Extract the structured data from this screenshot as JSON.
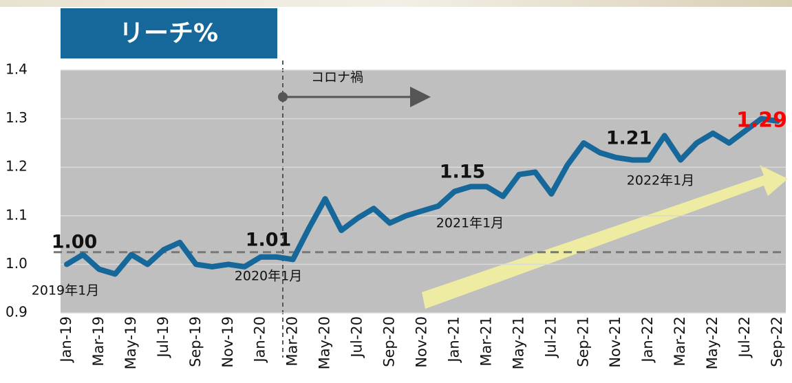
{
  "chart_data": {
    "type": "line",
    "title": "リーチ%",
    "categories": [
      "Jan-19",
      null,
      "Mar-19",
      null,
      "May-19",
      null,
      "Jul-19",
      null,
      "Sep-19",
      null,
      "Nov-19",
      null,
      "Jan-20",
      null,
      "Mar-20",
      null,
      "May-20",
      null,
      "Jul-20",
      null,
      "Sep-20",
      null,
      "Nov-20",
      null,
      "Jan-21",
      null,
      "Mar-21",
      null,
      "May-21",
      null,
      "Jul-21",
      null,
      "Sep-21",
      null,
      "Nov-21",
      null,
      "Jan-22",
      null,
      "Mar-22",
      null,
      "May-22",
      null,
      "Jul-22",
      null,
      "Sep-22"
    ],
    "values": [
      1.0,
      1.02,
      0.99,
      0.98,
      1.02,
      1.0,
      1.03,
      1.045,
      1.0,
      0.995,
      1.0,
      0.995,
      1.015,
      1.015,
      1.01,
      1.075,
      1.135,
      1.07,
      1.095,
      1.115,
      1.085,
      1.1,
      1.11,
      1.12,
      1.15,
      1.16,
      1.16,
      1.14,
      1.185,
      1.19,
      1.145,
      1.205,
      1.25,
      1.23,
      1.22,
      1.215,
      1.215,
      1.265,
      1.215,
      1.25,
      1.27,
      1.25,
      1.275,
      1.3,
      1.295
    ],
    "color": "#17689a",
    "ylim": [
      0.9,
      1.4
    ],
    "yticks": [
      0.9,
      {
        "value": 1,
        "label": "1.0"
      },
      1.1,
      1.2,
      1.3,
      1.4
    ],
    "grid": true,
    "reference_y": 1.025,
    "annotations": [
      "1.00",
      "1.01",
      "1.15",
      "1.21",
      "1.29",
      "2019年1月",
      "2020年1月",
      "2021年1月",
      "2022年1月",
      "コロナ禍"
    ]
  }
}
